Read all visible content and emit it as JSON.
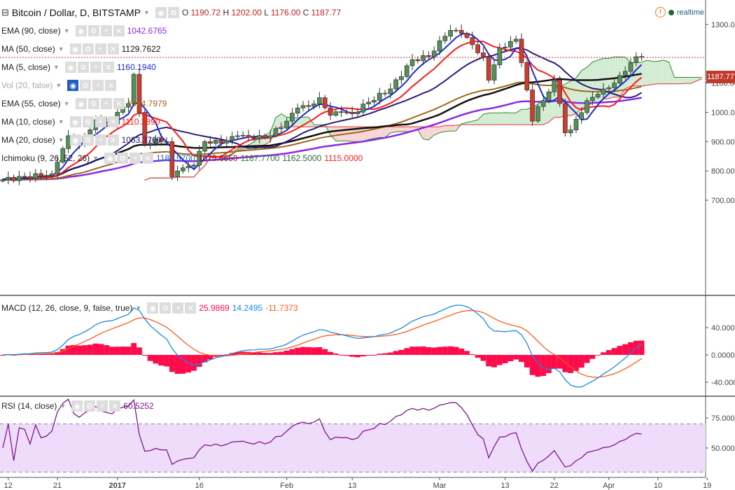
{
  "header": {
    "title": "Bitcoin / Dollar, D, BITSTAMP",
    "o_label": "O",
    "o": "1190.72",
    "h_label": "H",
    "h": "1202.00",
    "l_label": "L",
    "l": "1176.00",
    "c_label": "C",
    "c": "1187.77",
    "realtime": "realtime"
  },
  "legends": [
    {
      "name": "EMA (90, close)",
      "values": [
        "1042.6765"
      ],
      "colors": [
        "#8a2be2"
      ]
    },
    {
      "name": "MA (50, close)",
      "values": [
        "1129.7622"
      ],
      "colors": [
        "#111111"
      ]
    },
    {
      "name": "MA (5, close)",
      "values": [
        "1160.1940"
      ],
      "colors": [
        "#1e2ad0"
      ]
    },
    {
      "name": "Vol (20, false)",
      "values": [],
      "colors": []
    },
    {
      "name": "EMA (55, close)",
      "values": [
        "1084.7979"
      ],
      "colors": [
        "#a0661a"
      ]
    },
    {
      "name": "MA (10, close)",
      "values": [
        "1110.2890"
      ],
      "colors": [
        "#ff1a1a"
      ]
    },
    {
      "name": "MA (20, close)",
      "values": [
        "1063.3700"
      ],
      "colors": [
        "#2a1b7a"
      ]
    },
    {
      "name": "Ichimoku (9, 26, 52, 26)",
      "values": [
        "1189.5700",
        "1075.6650",
        "1187.7700",
        "1162.5000",
        "1115.0000"
      ],
      "colors": [
        "#1e6ad0",
        "#7a1a1a",
        "#2e7a2e",
        "#2e6a2e",
        "#ff1a1a"
      ]
    },
    {
      "name": "MACD (12, 26, close, 9, false, true)",
      "values": [
        "25.9869",
        "14.2495",
        "-11.7373"
      ],
      "colors": [
        "#ff0a4a",
        "#1e88e5",
        "#ff5a1a"
      ]
    },
    {
      "name": "RSI (14, close)",
      "values": [
        "60.5252"
      ],
      "colors": [
        "#7a1a8a"
      ]
    }
  ],
  "chart_data": {
    "type": "candlestick",
    "title": "Bitcoin / Dollar, D, BITSTAMP",
    "close_keyframes": [
      [
        "2016-12-11",
        770
      ],
      [
        "2016-12-20",
        790
      ],
      [
        "2016-12-21",
        830
      ],
      [
        "2016-12-23",
        920
      ],
      [
        "2016-12-25",
        890
      ],
      [
        "2016-12-28",
        975
      ],
      [
        "2016-12-31",
        960
      ],
      [
        "2017-01-01",
        1000
      ],
      [
        "2017-01-03",
        1030
      ],
      [
        "2017-01-04",
        1130
      ],
      [
        "2017-01-05",
        1000
      ],
      [
        "2017-01-06",
        890
      ],
      [
        "2017-01-08",
        910
      ],
      [
        "2017-01-10",
        900
      ],
      [
        "2017-01-11",
        780
      ],
      [
        "2017-01-12",
        800
      ],
      [
        "2017-01-15",
        820
      ],
      [
        "2017-01-17",
        900
      ],
      [
        "2017-01-20",
        895
      ],
      [
        "2017-01-23",
        920
      ],
      [
        "2017-01-26",
        910
      ],
      [
        "2017-01-29",
        920
      ],
      [
        "2017-02-01",
        970
      ],
      [
        "2017-02-03",
        1015
      ],
      [
        "2017-02-05",
        1020
      ],
      [
        "2017-02-07",
        1050
      ],
      [
        "2017-02-09",
        990
      ],
      [
        "2017-02-11",
        1000
      ],
      [
        "2017-02-13",
        995
      ],
      [
        "2017-02-16",
        1035
      ],
      [
        "2017-02-20",
        1080
      ],
      [
        "2017-02-24",
        1180
      ],
      [
        "2017-02-27",
        1190
      ],
      [
        "2017-03-02",
        1260
      ],
      [
        "2017-03-03",
        1280
      ],
      [
        "2017-03-05",
        1270
      ],
      [
        "2017-03-09",
        1190
      ],
      [
        "2017-03-10",
        1110
      ],
      [
        "2017-03-12",
        1220
      ],
      [
        "2017-03-15",
        1250
      ],
      [
        "2017-03-16",
        1170
      ],
      [
        "2017-03-18",
        970
      ],
      [
        "2017-03-19",
        1020
      ],
      [
        "2017-03-20",
        1040
      ],
      [
        "2017-03-22",
        1110
      ],
      [
        "2017-03-23",
        1030
      ],
      [
        "2017-03-24",
        930
      ],
      [
        "2017-03-25",
        940
      ],
      [
        "2017-03-28",
        1040
      ],
      [
        "2017-03-31",
        1080
      ],
      [
        "2017-04-02",
        1100
      ],
      [
        "2017-04-04",
        1140
      ],
      [
        "2017-04-06",
        1190
      ],
      [
        "2017-04-07",
        1187.77
      ]
    ],
    "last_candle": {
      "open": 1190.72,
      "high": 1202.0,
      "low": 1176.0,
      "close": 1187.77
    },
    "price_axis": {
      "ticks": [
        "1300.00",
        "1200.00",
        "1100.00",
        "1000.00",
        "900.00",
        "800.00",
        "700.00"
      ],
      "last_price_label": "1187.77"
    },
    "macd_axis": {
      "ticks": [
        "40.0000",
        "0.0000",
        "-40.0000"
      ]
    },
    "rsi_axis": {
      "ticks": [
        "75.0000",
        "50.0000"
      ],
      "bands": [
        70,
        30
      ]
    },
    "x_axis": {
      "ticks": [
        [
          "2016-12-12",
          "12"
        ],
        [
          "2016-12-21",
          "21"
        ],
        [
          "2017-01-01",
          "2017"
        ],
        [
          "2017-01-16",
          "16"
        ],
        [
          "2017-02-01",
          "Feb"
        ],
        [
          "2017-02-13",
          "13"
        ],
        [
          "2017-03-01",
          "Mar"
        ],
        [
          "2017-03-13",
          "13"
        ],
        [
          "2017-03-22",
          "22"
        ],
        [
          "2017-04-01",
          "Apr"
        ],
        [
          "2017-04-10",
          "10"
        ],
        [
          "2017-04-19",
          "19"
        ]
      ]
    },
    "colors": {
      "up": "#53915b",
      "down": "#d03c2c",
      "cloud_up": "#d4ecd4",
      "cloud_down": "#f8d6d6",
      "macd_hist": "#ff0a4a",
      "rsi_fill": "#efdcfb"
    }
  }
}
